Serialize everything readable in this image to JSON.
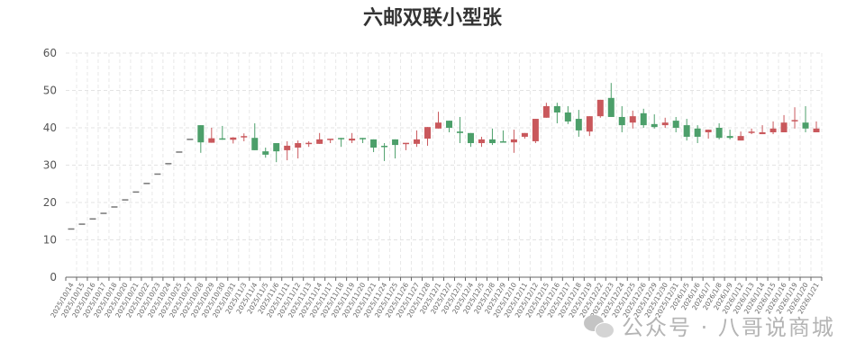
{
  "chart_data": {
    "type": "candlestick",
    "title": "六邮双联小型张",
    "ylim": [
      0,
      60
    ],
    "yticks": [
      0,
      10,
      20,
      30,
      40,
      50,
      60
    ],
    "grid": true,
    "colors": {
      "up": "#c9585c",
      "down": "#4c9f6a"
    },
    "ohlc_order": [
      "open",
      "close",
      "low",
      "high"
    ],
    "categories": [
      "2025/10/14",
      "2025/10/15",
      "2025/10/16",
      "2025/10/17",
      "2025/10/18",
      "2025/10/20",
      "2025/10/21",
      "2025/10/22",
      "2025/10/23",
      "2025/10/24",
      "2025/10/25",
      "2025/10/27",
      "2025/10/28",
      "2025/10/29",
      "2025/10/30",
      "2025/10/31",
      "2025/11/3",
      "2025/11/4",
      "2025/11/5",
      "2025/11/6",
      "2025/11/11",
      "2025/11/12",
      "2025/11/13",
      "2025/11/14",
      "2025/11/17",
      "2025/11/18",
      "2025/11/19",
      "2025/11/20",
      "2025/11/21",
      "2025/11/24",
      "2025/11/25",
      "2025/11/26",
      "2025/11/27",
      "2025/11/28",
      "2025/12/1",
      "2025/12/2",
      "2025/12/3",
      "2025/12/4",
      "2025/12/5",
      "2025/12/8",
      "2025/12/9",
      "2025/12/10",
      "2025/12/11",
      "2025/12/12",
      "2025/12/15",
      "2025/12/16",
      "2025/12/17",
      "2025/12/18",
      "2025/12/19",
      "2025/12/22",
      "2025/12/23",
      "2025/12/24",
      "2025/12/25",
      "2025/12/26",
      "2025/12/29",
      "2025/12/30",
      "2025/12/31",
      "2026/1/5",
      "2026/1/6",
      "2026/1/7",
      "2026/1/8",
      "2026/1/9",
      "2026/1/12",
      "2026/1/13",
      "2026/1/14",
      "2026/1/15",
      "2026/1/16",
      "2026/1/19",
      "2026/1/20",
      "2026/1/21"
    ],
    "values": [
      [
        12.9,
        12.9,
        12.9,
        12.9
      ],
      [
        14.2,
        14.2,
        14.2,
        14.2
      ],
      [
        15.6,
        15.6,
        15.6,
        15.6
      ],
      [
        17.1,
        17.1,
        17.1,
        17.1
      ],
      [
        18.8,
        18.8,
        18.8,
        18.8
      ],
      [
        20.7,
        20.7,
        20.7,
        20.7
      ],
      [
        22.8,
        22.8,
        22.8,
        22.8
      ],
      [
        25.1,
        25.1,
        25.1,
        25.1
      ],
      [
        27.6,
        27.6,
        27.6,
        27.6
      ],
      [
        30.4,
        30.4,
        30.4,
        30.4
      ],
      [
        33.5,
        33.5,
        33.5,
        33.5
      ],
      [
        36.9,
        36.9,
        36.9,
        36.9
      ],
      [
        40.7,
        36.1,
        33.3,
        40.7
      ],
      [
        36.0,
        37.2,
        36.0,
        40.0
      ],
      [
        37.0,
        36.9,
        36.8,
        40.5
      ],
      [
        36.8,
        37.4,
        35.8,
        37.5
      ],
      [
        37.5,
        37.6,
        36.4,
        38.5
      ],
      [
        37.3,
        34.0,
        34.0,
        41.2
      ],
      [
        33.7,
        32.8,
        32.0,
        34.7
      ],
      [
        35.9,
        33.7,
        30.8,
        35.9
      ],
      [
        34.0,
        35.2,
        31.3,
        36.4
      ],
      [
        34.7,
        35.9,
        31.8,
        36.6
      ],
      [
        35.6,
        35.8,
        34.9,
        36.4
      ],
      [
        35.7,
        36.9,
        35.7,
        38.6
      ],
      [
        36.9,
        36.9,
        35.9,
        36.9
      ],
      [
        37.1,
        37.0,
        34.9,
        37.3
      ],
      [
        36.6,
        37.1,
        35.9,
        38.6
      ],
      [
        37.1,
        37.0,
        35.9,
        37.3
      ],
      [
        36.9,
        34.7,
        33.5,
        36.9
      ],
      [
        35.0,
        34.9,
        31.1,
        35.9
      ],
      [
        36.9,
        35.4,
        31.8,
        36.9
      ],
      [
        35.5,
        35.8,
        34.0,
        35.9
      ],
      [
        35.7,
        36.9,
        34.9,
        39.3
      ],
      [
        37.1,
        40.2,
        35.2,
        40.2
      ],
      [
        39.8,
        41.4,
        39.8,
        44.3
      ],
      [
        41.9,
        40.0,
        38.8,
        41.9
      ],
      [
        39.0,
        38.6,
        35.9,
        42.9
      ],
      [
        38.6,
        35.9,
        34.9,
        38.6
      ],
      [
        35.9,
        36.9,
        34.9,
        37.6
      ],
      [
        36.9,
        35.9,
        35.4,
        39.8
      ],
      [
        36.2,
        36.1,
        36.1,
        39.3
      ],
      [
        36.1,
        36.9,
        33.3,
        39.5
      ],
      [
        37.6,
        38.6,
        37.1,
        38.6
      ],
      [
        36.4,
        42.4,
        35.9,
        42.4
      ],
      [
        42.7,
        45.8,
        42.7,
        46.7
      ],
      [
        45.8,
        44.1,
        41.2,
        46.7
      ],
      [
        44.1,
        41.7,
        41.0,
        45.8
      ],
      [
        42.4,
        39.3,
        37.6,
        44.8
      ],
      [
        39.0,
        43.1,
        37.8,
        43.1
      ],
      [
        43.1,
        47.5,
        42.7,
        47.5
      ],
      [
        48.0,
        42.9,
        42.9,
        52.0
      ],
      [
        42.9,
        40.7,
        38.8,
        45.8
      ],
      [
        41.4,
        43.1,
        39.8,
        44.6
      ],
      [
        43.9,
        40.7,
        40.0,
        45.1
      ],
      [
        41.0,
        40.2,
        39.8,
        43.6
      ],
      [
        40.7,
        41.4,
        40.0,
        42.7
      ],
      [
        41.9,
        40.0,
        38.8,
        42.9
      ],
      [
        40.7,
        37.6,
        36.6,
        42.4
      ],
      [
        39.8,
        37.6,
        35.9,
        40.7
      ],
      [
        38.8,
        39.5,
        37.1,
        39.5
      ],
      [
        40.0,
        37.3,
        36.9,
        41.2
      ],
      [
        37.8,
        37.3,
        36.9,
        39.5
      ],
      [
        36.6,
        37.8,
        36.6,
        39.0
      ],
      [
        38.7,
        38.8,
        38.3,
        39.8
      ],
      [
        38.3,
        38.8,
        38.3,
        40.7
      ],
      [
        38.8,
        39.8,
        38.3,
        41.7
      ],
      [
        38.8,
        41.4,
        38.8,
        43.4
      ],
      [
        41.8,
        41.9,
        39.8,
        45.5
      ],
      [
        41.4,
        39.8,
        38.8,
        45.8
      ],
      [
        38.8,
        39.8,
        38.8,
        41.7
      ]
    ]
  },
  "watermark": {
    "text": "公众号 · 八哥说商城",
    "icon": "wechat-icon"
  }
}
